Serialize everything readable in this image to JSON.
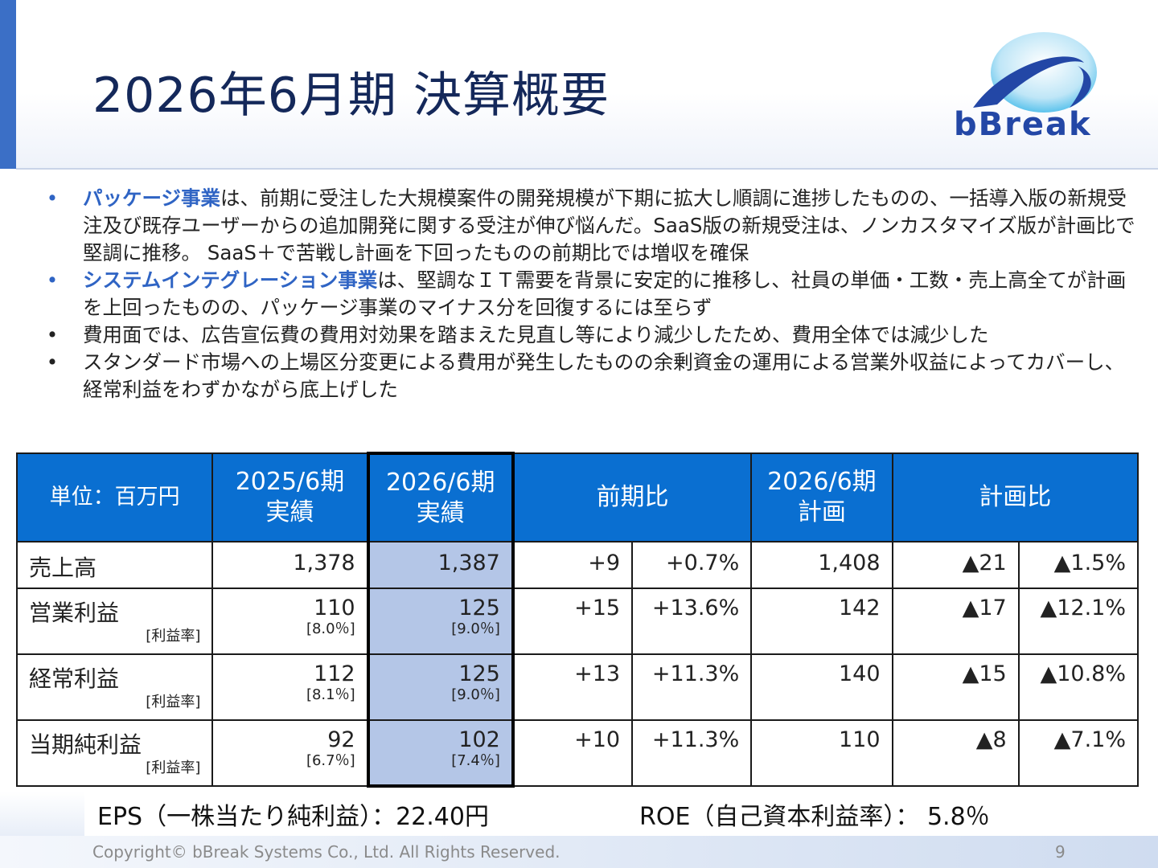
{
  "title": "2026年6月期 決算概要",
  "logo": {
    "text": "bBreak"
  },
  "bullets": [
    {
      "highlight": "パッケージ事業",
      "text": "は、前期に受注した大規模案件の開発規模が下期に拡大し順調に進捗したものの、一括導入版の新規受注及び既存ユーザーからの追加開発に関する受注が伸び悩んだ。SaaS版の新規受注は、ノンカスタマイズ版が計画比で堅調に推移。 SaaS＋で苦戦し計画を下回ったものの前期比では増収を確保"
    },
    {
      "highlight": "システムインテグレーション事業",
      "text": "は、堅調なＩＴ需要を背景に安定的に推移し、社員の単価・工数・売上高全てが計画を上回ったものの、パッケージ事業のマイナス分を回復するには至らず"
    },
    {
      "highlight": "",
      "text": "費用面では、広告宣伝費の費用対効果を踏まえた見直し等により減少したため、費用全体では減少した"
    },
    {
      "highlight": "",
      "text": "スタンダード市場への上場区分変更による費用が発生したものの余剰資金の運用による営業外収益によってカバーし、経常利益をわずかながら底上げした"
    }
  ],
  "table": {
    "headers": {
      "unit": "単位：百万円",
      "prev_line1": "2025/6期",
      "prev_line2": "実績",
      "cur_line1": "2026/6期",
      "cur_line2": "実績",
      "yoy": "前期比",
      "plan_line1": "2026/6期",
      "plan_line2": "計画",
      "vs_plan": "計画比"
    },
    "margin_label": "[利益率]",
    "rows": [
      {
        "label": "売上高",
        "prev": "1,378",
        "prev_margin": "",
        "cur": "1,387",
        "cur_margin": "",
        "yoy_abs": "+9",
        "yoy_pct": "+0.7%",
        "plan": "1,408",
        "plan_abs": "▲21",
        "plan_pct": "▲1.5%"
      },
      {
        "label": "営業利益",
        "prev": "110",
        "prev_margin": "[8.0％]",
        "cur": "125",
        "cur_margin": "[9.0％]",
        "yoy_abs": "+15",
        "yoy_pct": "+13.6%",
        "plan": "142",
        "plan_abs": "▲17",
        "plan_pct": "▲12.1%"
      },
      {
        "label": "経常利益",
        "prev": "112",
        "prev_margin": "[8.1％]",
        "cur": "125",
        "cur_margin": "[9.0％]",
        "yoy_abs": "+13",
        "yoy_pct": "+11.3%",
        "plan": "140",
        "plan_abs": "▲15",
        "plan_pct": "▲10.8%"
      },
      {
        "label": "当期純利益",
        "prev": "92",
        "prev_margin": "[6.7％]",
        "cur": "102",
        "cur_margin": "[7.4％]",
        "yoy_abs": "+10",
        "yoy_pct": "+11.3%",
        "plan": "110",
        "plan_abs": "▲8",
        "plan_pct": "▲7.1%"
      }
    ]
  },
  "metrics": {
    "eps": "EPS（一株当たり純利益）：22.40円",
    "roe": "ROE（自己資本利益率）： 5.8％"
  },
  "footer": {
    "copyright": "Copyright© bBreak Systems Co., Ltd. All Rights Reserved.",
    "page": "9"
  },
  "colors": {
    "accent": "#3b6fc6",
    "header_blue": "#0a6fd1",
    "highlight_text": "#2f64c4",
    "current_col": "#b4c6e7"
  }
}
